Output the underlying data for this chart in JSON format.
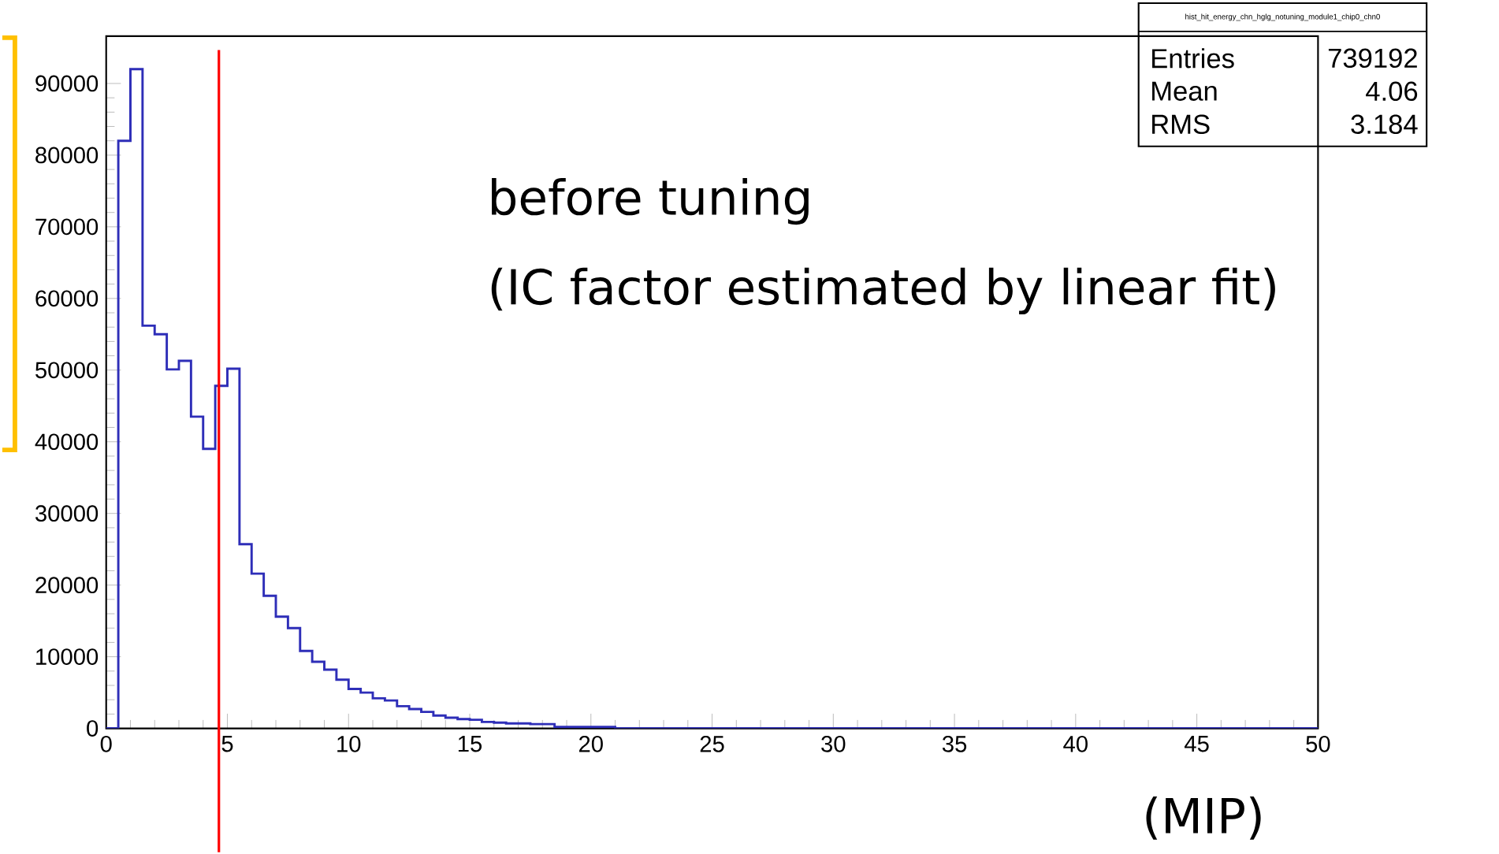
{
  "chart_data": {
    "type": "histogram",
    "bins": [
      0,
      0.5,
      1,
      1.5,
      2,
      2.5,
      3,
      3.5,
      4,
      4.5,
      5,
      5.5,
      6,
      6.5,
      7,
      7.5,
      8,
      8.5,
      9,
      9.5,
      10,
      10.5,
      11,
      11.5,
      12,
      12.5,
      13,
      13.5,
      14,
      14.5,
      15,
      15.5,
      16,
      16.5,
      17,
      17.5,
      18,
      18.5,
      19,
      19.5,
      20,
      20.5,
      21,
      21.5,
      22,
      22.5,
      23,
      23.5,
      24,
      24.5,
      25,
      25.5,
      26,
      26.5,
      27,
      27.5,
      28,
      28.5,
      29,
      29.5,
      30,
      30.5,
      31,
      31.5,
      32,
      32.5,
      33,
      33.5,
      34,
      34.5,
      35,
      35.5,
      36,
      36.5,
      37,
      37.5,
      38,
      38.5,
      39,
      39.5,
      40,
      40.5,
      41,
      41.5,
      42,
      42.5,
      43,
      43.5,
      44,
      44.5,
      45,
      45.5,
      46,
      46.5,
      47,
      47.5,
      48,
      48.5,
      49,
      49.5,
      50
    ],
    "values": [
      0,
      82000,
      92000,
      56200,
      55000,
      50100,
      51300,
      43500,
      39000,
      47800,
      50200,
      25700,
      21600,
      18500,
      15600,
      14000,
      10800,
      9300,
      8200,
      6800,
      5500,
      5000,
      4200,
      3900,
      3100,
      2700,
      2300,
      1800,
      1500,
      1300,
      1200,
      900,
      800,
      700,
      700,
      600,
      600,
      200,
      200,
      200,
      200,
      200,
      0,
      0,
      0,
      0,
      0,
      0,
      0,
      0,
      0,
      0,
      0,
      0,
      0,
      0,
      0,
      0,
      0,
      0,
      0,
      0,
      0,
      0,
      0,
      0,
      0,
      0,
      0,
      0,
      0,
      0,
      0,
      0,
      0,
      0,
      0,
      0,
      0,
      0,
      0,
      0,
      0,
      0,
      0,
      0,
      0,
      0,
      0,
      0,
      0,
      0,
      0,
      0,
      0,
      0,
      0,
      0,
      0,
      0
    ],
    "color": "#2e2eb8",
    "xlim": [
      0,
      50
    ],
    "ylim": [
      0,
      96600
    ],
    "xticks": [
      0,
      5,
      10,
      15,
      20,
      25,
      30,
      35,
      40,
      45,
      50
    ],
    "yticks": [
      0,
      10000,
      20000,
      30000,
      40000,
      50000,
      60000,
      70000,
      80000,
      90000
    ],
    "xlabel": "(MIP)",
    "ref_lines": [
      {
        "axis": "x",
        "value": 4.65,
        "color": "#ff0000"
      }
    ],
    "annotations": [
      "before tuning",
      "(IC factor estimated by linear fit)",
      "hist_hit_energy_chn_hglg_notuning_module1_chip0_chn0",
      "Entries",
      "739192",
      "Mean",
      "4.06",
      "RMS",
      "3.184"
    ]
  }
}
